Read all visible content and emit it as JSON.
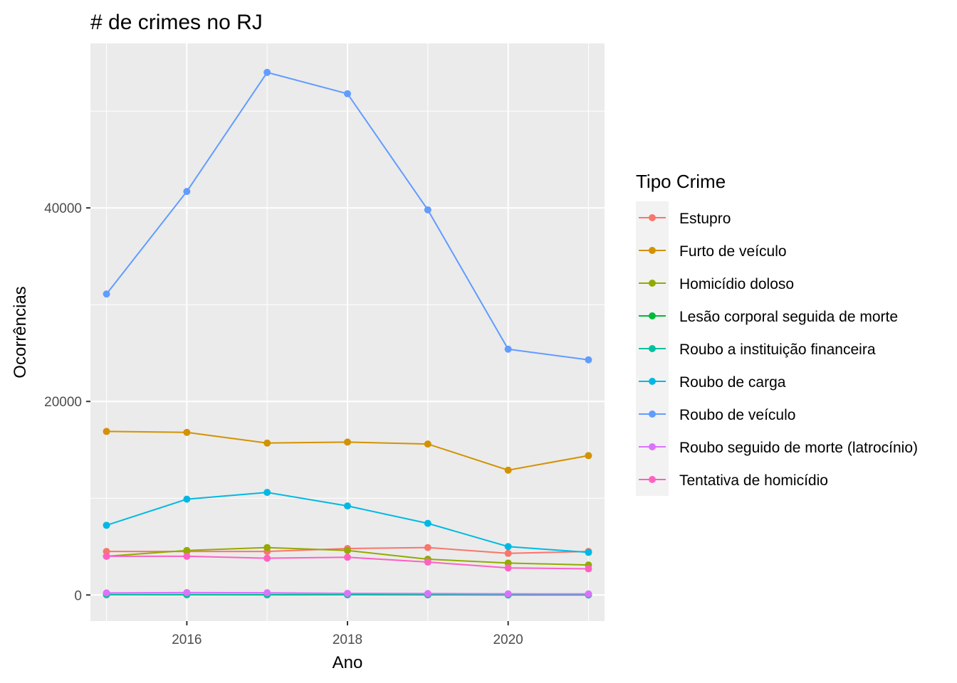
{
  "chart_data": {
    "type": "line",
    "title": "# de crimes no RJ",
    "xlabel": "Ano",
    "ylabel": "Ocorrências",
    "x": [
      2015,
      2016,
      2017,
      2018,
      2019,
      2020,
      2021
    ],
    "xlim": [
      2014.8,
      2021.2
    ],
    "ylim": [
      -2700,
      57000
    ],
    "x_ticks": [
      2016,
      2018,
      2020
    ],
    "x_tick_labels": [
      "2016",
      "2018",
      "2020"
    ],
    "y_ticks": [
      0,
      20000,
      40000
    ],
    "y_tick_labels": [
      "0",
      "20000",
      "40000"
    ],
    "grid": true,
    "legend": {
      "title": "Tipo Crime",
      "placement": "right"
    },
    "series": [
      {
        "name": "Estupro",
        "color": "#F8766D",
        "values": [
          4500,
          4500,
          4500,
          4800,
          4900,
          4300,
          4500
        ]
      },
      {
        "name": "Furto de veículo",
        "color": "#D39200",
        "values": [
          16900,
          16800,
          15700,
          15800,
          15600,
          12900,
          14400
        ]
      },
      {
        "name": "Homicídio doloso",
        "color": "#93AA00",
        "values": [
          4000,
          4600,
          4900,
          4600,
          3700,
          3300,
          3100
        ]
      },
      {
        "name": "Lesão corporal seguida de morte",
        "color": "#00BA38",
        "values": [
          40,
          45,
          40,
          35,
          30,
          30,
          30
        ]
      },
      {
        "name": "Roubo a instituição financeira",
        "color": "#00C19F",
        "values": [
          30,
          20,
          15,
          20,
          10,
          5,
          5
        ]
      },
      {
        "name": "Roubo de carga",
        "color": "#00B9E3",
        "values": [
          7200,
          9900,
          10600,
          9200,
          7400,
          5000,
          4400
        ]
      },
      {
        "name": "Roubo de veículo",
        "color": "#619CFF",
        "values": [
          31100,
          41700,
          54000,
          51800,
          39800,
          25400,
          24300
        ]
      },
      {
        "name": "Roubo seguido de morte (latrocínio)",
        "color": "#DB72FB",
        "values": [
          210,
          250,
          230,
          170,
          150,
          120,
          110
        ]
      },
      {
        "name": "Tentativa de homicídio",
        "color": "#FF61C3",
        "values": [
          4000,
          4000,
          3800,
          3900,
          3400,
          2800,
          2700
        ]
      }
    ]
  }
}
